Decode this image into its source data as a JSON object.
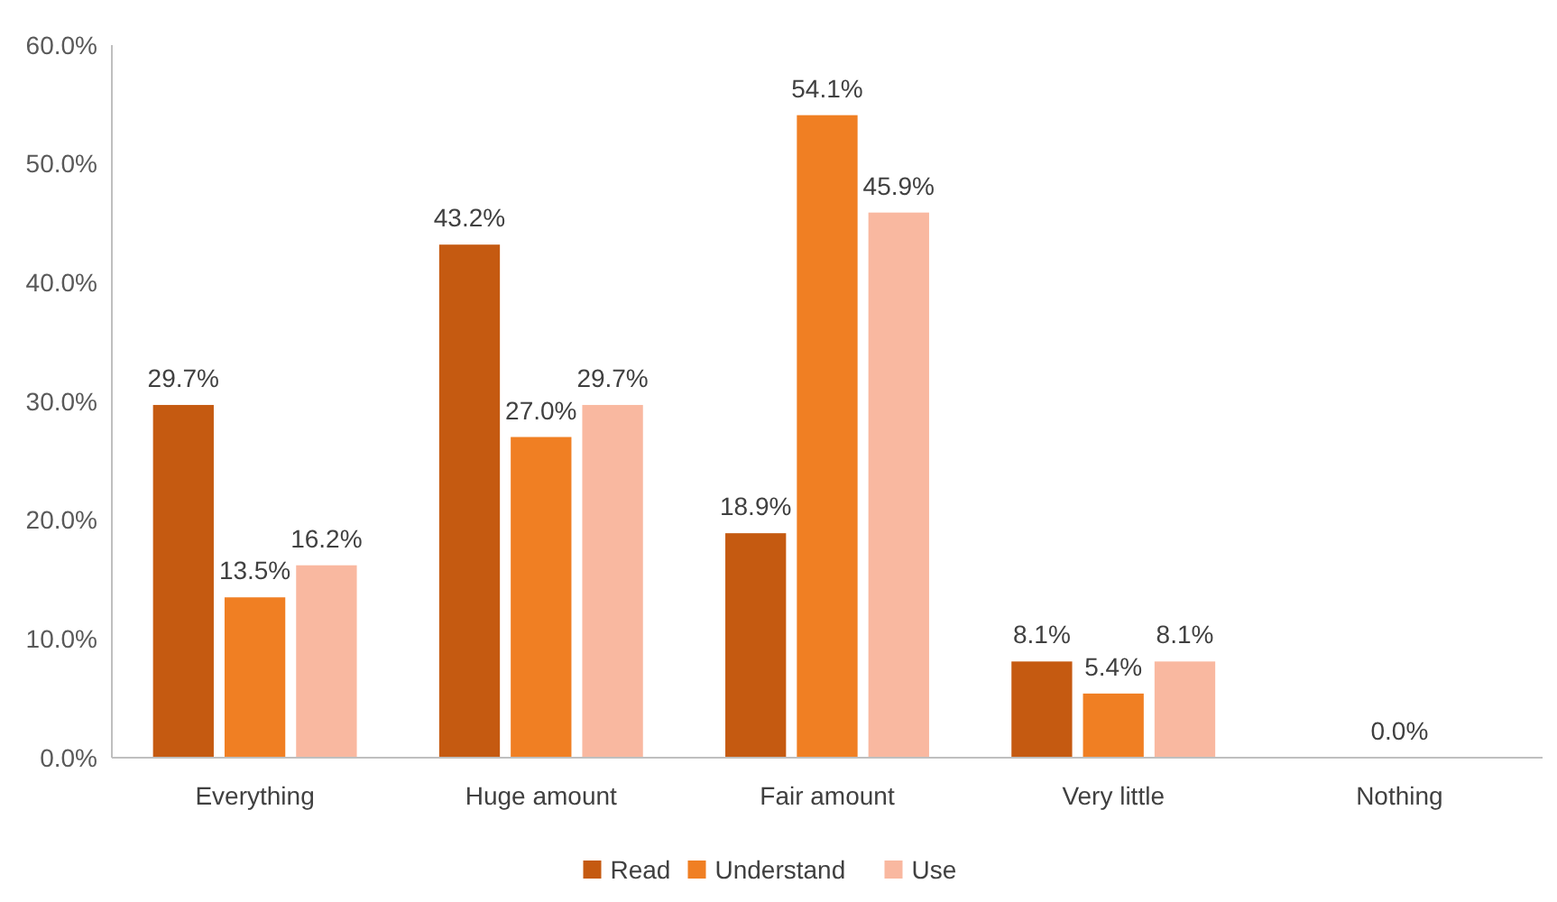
{
  "chart_data": {
    "type": "bar",
    "categories": [
      "Everything",
      "Huge amount",
      "Fair amount",
      "Very little",
      "Nothing"
    ],
    "series": [
      {
        "name": "Read",
        "color": "#c55a11",
        "values": [
          29.7,
          43.2,
          18.9,
          8.1,
          0.0
        ],
        "value_labels": [
          "29.7%",
          "43.2%",
          "18.9%",
          "8.1%",
          null
        ]
      },
      {
        "name": "Understand",
        "color": "#f07f23",
        "values": [
          13.5,
          27.0,
          54.1,
          5.4,
          0.0
        ],
        "value_labels": [
          "13.5%",
          "27.0%",
          "54.1%",
          "5.4%",
          "0.0%"
        ]
      },
      {
        "name": "Use",
        "color": "#f9b8a0",
        "values": [
          16.2,
          29.7,
          45.9,
          8.1,
          0.0
        ],
        "value_labels": [
          "16.2%",
          "29.7%",
          "45.9%",
          "8.1%",
          null
        ]
      }
    ],
    "ylim": [
      0,
      60
    ],
    "yticks": [
      {
        "value": 0,
        "label": "0.0%"
      },
      {
        "value": 10,
        "label": "10.0%"
      },
      {
        "value": 20,
        "label": "20.0%"
      },
      {
        "value": 30,
        "label": "30.0%"
      },
      {
        "value": 40,
        "label": "40.0%"
      },
      {
        "value": 50,
        "label": "50.0%"
      },
      {
        "value": 60,
        "label": "60.0%"
      }
    ],
    "grid": false,
    "legend": "bottom"
  }
}
